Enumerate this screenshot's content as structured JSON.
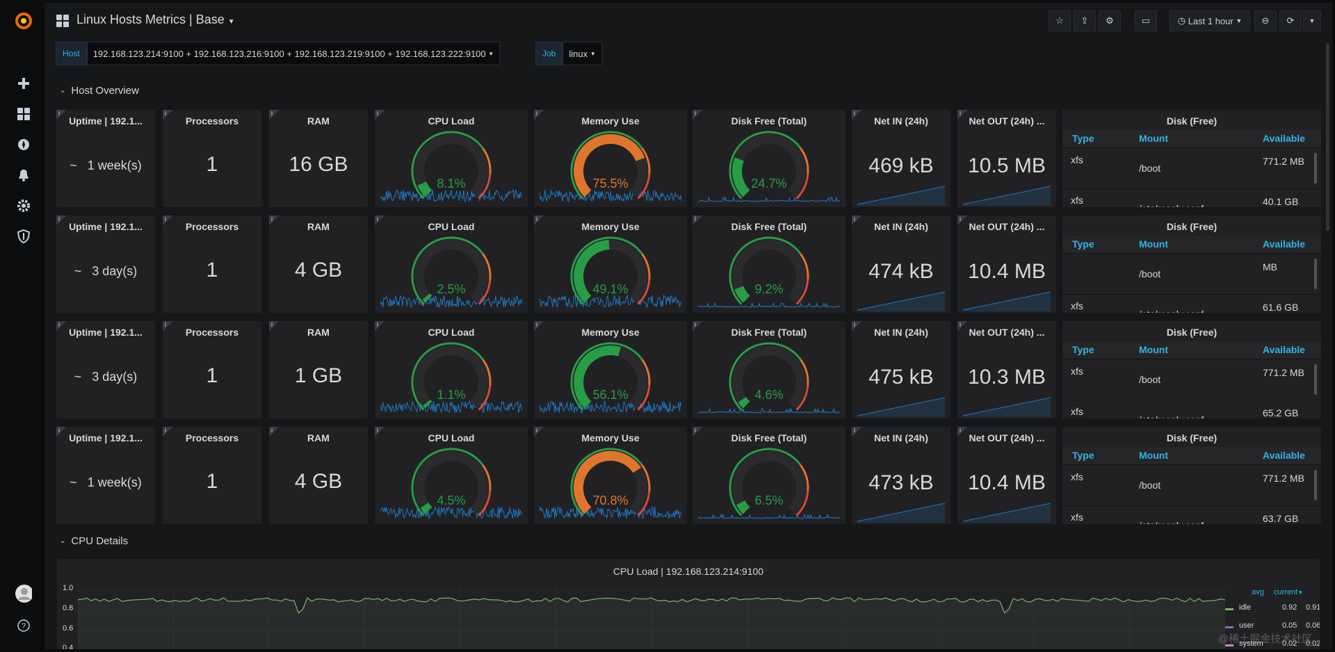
{
  "app": {
    "dashboard_title": "Linux Hosts Metrics | Base",
    "time_range": "Last 1 hour"
  },
  "variables": [
    {
      "label": "Host",
      "value": "192.168.123.214:9100 + 192.168.123.216:9100 + 192.168.123.219:9100 + 192.168.123.222:9100"
    },
    {
      "label": "Job",
      "value": "linux"
    }
  ],
  "rows": {
    "host_overview": "Host Overview",
    "cpu_details": "CPU Details"
  },
  "panel_titles": {
    "uptime": "Uptime | 192.1...",
    "processors": "Processors",
    "ram": "RAM",
    "cpu_load": "CPU Load",
    "memory_use": "Memory Use",
    "disk_free_total": "Disk Free (Total)",
    "net_in": "Net IN (24h)",
    "net_out": "Net OUT (24h) ...",
    "disk_free": "Disk (Free)"
  },
  "table_headers": {
    "type": "Type",
    "mount": "Mount",
    "available": "Available"
  },
  "hosts": [
    {
      "uptime": "~   1 week(s)",
      "processors": "1",
      "ram": "16 GB",
      "cpu_load": "8.1%",
      "cpu_frac": 0.081,
      "memory_use": "75.5%",
      "mem_frac": 0.755,
      "disk_free": "24.7%",
      "disk_frac": 0.247,
      "net_in": "469 kB",
      "net_out": "10.5 MB",
      "disk_rows": [
        {
          "type": "xfs",
          "mount": "/boot",
          "available": "771.2 MB"
        },
        {
          "type": "xfs",
          "mount": "/etc/resolv.conf",
          "available": "40.1 GB"
        }
      ]
    },
    {
      "uptime": "~   3 day(s)",
      "processors": "1",
      "ram": "4 GB",
      "cpu_load": "2.5%",
      "cpu_frac": 0.025,
      "memory_use": "49.1%",
      "mem_frac": 0.491,
      "disk_free": "9.2%",
      "disk_frac": 0.092,
      "net_in": "474 kB",
      "net_out": "10.4 MB",
      "disk_rows": [
        {
          "type": "",
          "mount": "/boot",
          "available": "MB"
        },
        {
          "type": "xfs",
          "mount": "/etc/resolv.conf",
          "available": "61.6 GB"
        }
      ]
    },
    {
      "uptime": "~   3 day(s)",
      "processors": "1",
      "ram": "1 GB",
      "cpu_load": "1.1%",
      "cpu_frac": 0.011,
      "memory_use": "56.1%",
      "mem_frac": 0.561,
      "disk_free": "4.6%",
      "disk_frac": 0.046,
      "net_in": "475 kB",
      "net_out": "10.3 MB",
      "disk_rows": [
        {
          "type": "xfs",
          "mount": "/boot",
          "available": "771.2 MB"
        },
        {
          "type": "xfs",
          "mount": "/etc/resolv.conf",
          "available": "65.2 GB"
        }
      ]
    },
    {
      "uptime": "~   1 week(s)",
      "processors": "1",
      "ram": "4 GB",
      "cpu_load": "4.5%",
      "cpu_frac": 0.045,
      "memory_use": "70.8%",
      "mem_frac": 0.708,
      "disk_free": "6.5%",
      "disk_frac": 0.065,
      "net_in": "473 kB",
      "net_out": "10.4 MB",
      "disk_rows": [
        {
          "type": "xfs",
          "mount": "/boot",
          "available": "771.2 MB"
        },
        {
          "type": "xfs",
          "mount": "/etc/resolv.conf",
          "available": "63.7 GB"
        }
      ]
    }
  ],
  "cpu_chart": {
    "title": "CPU Load | 192.168.123.214:9100",
    "y_ticks": [
      "1.0",
      "0.8",
      "0.6",
      "0.4"
    ],
    "legend_headers": {
      "avg": "avg",
      "current": "current"
    },
    "legend": [
      {
        "name": "idle",
        "avg": "0.92",
        "current": "0.91",
        "color": "#7eb26d"
      },
      {
        "name": "user",
        "avg": "0.05",
        "current": "0.06",
        "color": "#806eb7"
      },
      {
        "name": "system",
        "avg": "0.02",
        "current": "0.02",
        "color": "#d683ce"
      }
    ]
  },
  "colors": {
    "green": "#299c46",
    "orange": "#e0752d",
    "red": "#d44a3a",
    "spark": "#1f78c1"
  },
  "watermark": "@稀土掘金技术社区"
}
